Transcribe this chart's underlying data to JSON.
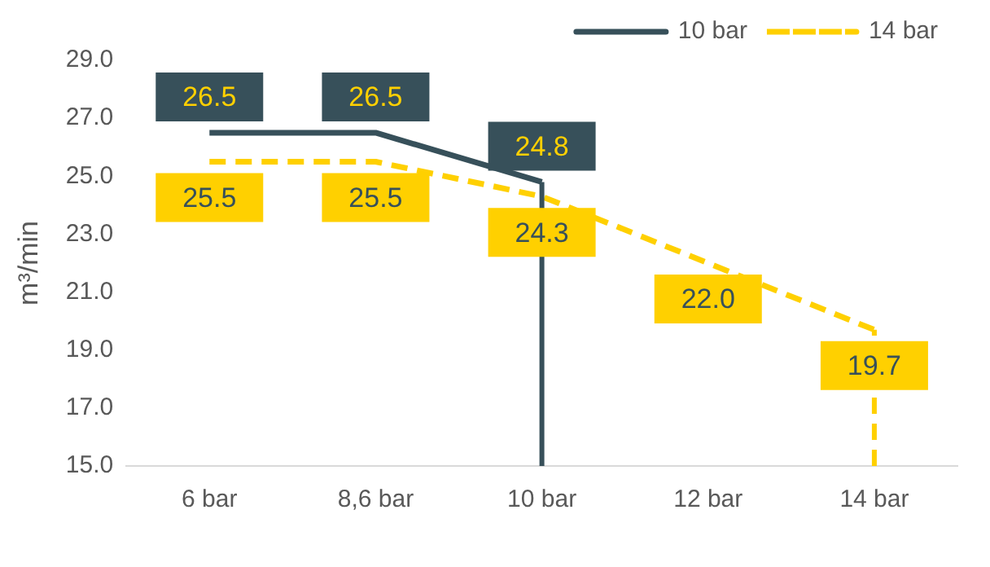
{
  "chart_data": {
    "type": "line",
    "ylabel": "m³/min",
    "categories": [
      "6 bar",
      "8,6 bar",
      "10 bar",
      "12 bar",
      "14 bar"
    ],
    "series": [
      {
        "name": "10 bar",
        "color": "#37505a",
        "line_style": "solid",
        "values": [
          26.5,
          26.5,
          24.8,
          null,
          null
        ],
        "value_labels": [
          "26.5",
          "26.5",
          "24.8",
          null,
          null
        ],
        "errors": [
          null,
          null,
          [
            15.0,
            24.8
          ],
          null,
          null
        ]
      },
      {
        "name": "14 bar",
        "color": "#ffd000",
        "line_style": "dashed",
        "values": [
          25.5,
          25.5,
          24.3,
          22.0,
          19.7
        ],
        "value_labels": [
          "25.5",
          "25.5",
          "24.3",
          "22.0",
          "19.7"
        ],
        "errors": [
          null,
          null,
          null,
          null,
          [
            15.0,
            19.7
          ]
        ]
      }
    ],
    "ylim": [
      15,
      29
    ],
    "yticks": [
      {
        "value": 15,
        "label": "15.0"
      },
      {
        "value": 17,
        "label": "17.0"
      },
      {
        "value": 19,
        "label": "19.0"
      },
      {
        "value": 21,
        "label": "21.0"
      },
      {
        "value": 23,
        "label": "23.0"
      },
      {
        "value": 25,
        "label": "25.0"
      },
      {
        "value": 27,
        "label": "27.0"
      },
      {
        "value": 29,
        "label": "29.0"
      }
    ],
    "grid": false,
    "legend": "top right",
    "marker": "none"
  }
}
